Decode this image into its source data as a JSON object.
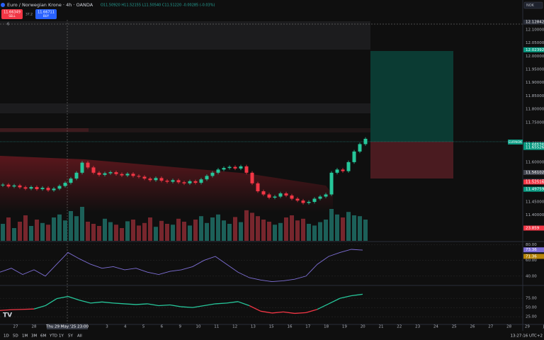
{
  "header": {
    "symbol": "Euro / Norwegian Krone · 4h · OANDA",
    "ohlc": "O11.50920 H11.52155 L11.50540 C11.51220 -0.00285 (-0.03%)",
    "sell_price": "11.66349",
    "sell_label": "SELL",
    "spread": "37.2",
    "buy_price": "11.66711",
    "buy_label": "BUY",
    "currency": "NOK",
    "indicator_count": "6",
    "symbol_tag": "EURNOK"
  },
  "chart_data": [
    {
      "type": "candlestick",
      "open": [
        11.512,
        11.515,
        11.508,
        11.512,
        11.505,
        11.5,
        11.506,
        11.498,
        11.503,
        11.494,
        11.5,
        11.51,
        11.522,
        11.538,
        11.56,
        11.598,
        11.58,
        11.56,
        11.552,
        11.558,
        11.562,
        11.555,
        11.55,
        11.556,
        11.548,
        11.545,
        11.538,
        11.532,
        11.54,
        11.53,
        11.526,
        11.532,
        11.524,
        11.52,
        11.528,
        11.522,
        11.535,
        11.548,
        11.56,
        11.572,
        11.578,
        11.582,
        11.576,
        11.584,
        11.56,
        11.52,
        11.49,
        11.478,
        11.466,
        11.47,
        11.482,
        11.474,
        11.462,
        11.455,
        11.446,
        11.45,
        11.462,
        11.47,
        11.478,
        11.56,
        11.572,
        11.566,
        11.6,
        11.64,
        11.668
      ],
      "high": [
        11.521,
        11.521,
        11.518,
        11.518,
        11.511,
        11.512,
        11.512,
        11.509,
        11.509,
        11.506,
        11.516,
        11.528,
        11.544,
        11.566,
        11.604,
        11.604,
        11.586,
        11.566,
        11.564,
        11.568,
        11.568,
        11.561,
        11.562,
        11.562,
        11.554,
        11.551,
        11.544,
        11.546,
        11.546,
        11.536,
        11.538,
        11.538,
        11.53,
        11.534,
        11.534,
        11.541,
        11.554,
        11.566,
        11.578,
        11.584,
        11.588,
        11.588,
        11.59,
        11.59,
        11.566,
        11.526,
        11.496,
        11.484,
        11.476,
        11.488,
        11.488,
        11.48,
        11.468,
        11.461,
        11.456,
        11.468,
        11.476,
        11.484,
        11.566,
        11.578,
        11.578,
        11.606,
        11.646,
        11.674,
        11.694
      ],
      "low": [
        11.506,
        11.502,
        11.502,
        11.499,
        11.494,
        11.494,
        11.492,
        11.492,
        11.488,
        11.488,
        11.494,
        11.504,
        11.516,
        11.532,
        11.554,
        11.574,
        11.554,
        11.546,
        11.546,
        11.552,
        11.549,
        11.544,
        11.544,
        11.542,
        11.539,
        11.532,
        11.526,
        11.526,
        11.524,
        11.52,
        11.52,
        11.518,
        11.514,
        11.514,
        11.516,
        11.516,
        11.529,
        11.542,
        11.554,
        11.566,
        11.572,
        11.57,
        11.57,
        11.554,
        11.514,
        11.484,
        11.472,
        11.46,
        11.46,
        11.464,
        11.468,
        11.456,
        11.449,
        11.44,
        11.44,
        11.444,
        11.456,
        11.464,
        11.472,
        11.554,
        11.56,
        11.56,
        11.594,
        11.634,
        11.662
      ],
      "close": [
        11.515,
        11.508,
        11.512,
        11.505,
        11.5,
        11.506,
        11.498,
        11.503,
        11.494,
        11.5,
        11.51,
        11.522,
        11.538,
        11.56,
        11.598,
        11.58,
        11.56,
        11.552,
        11.558,
        11.562,
        11.555,
        11.55,
        11.556,
        11.548,
        11.545,
        11.538,
        11.532,
        11.54,
        11.53,
        11.526,
        11.532,
        11.524,
        11.52,
        11.528,
        11.522,
        11.535,
        11.548,
        11.56,
        11.572,
        11.578,
        11.582,
        11.576,
        11.584,
        11.56,
        11.52,
        11.49,
        11.478,
        11.466,
        11.47,
        11.482,
        11.474,
        11.462,
        11.455,
        11.446,
        11.45,
        11.462,
        11.47,
        11.478,
        11.56,
        11.572,
        11.566,
        11.6,
        11.64,
        11.668,
        11.688
      ],
      "up_color": "#26c69a",
      "down_color": "#f23645",
      "ylim": [
        11.303,
        12.137
      ],
      "yticks": [
        {
          "value": 12.1,
          "label": "12.10000"
        },
        {
          "value": 12.05,
          "label": "12.05000"
        },
        {
          "value": 12.0,
          "label": "12.00000"
        },
        {
          "value": 11.95,
          "label": "11.95000"
        },
        {
          "value": 11.9,
          "label": "11.90000"
        },
        {
          "value": 11.85,
          "label": "11.85000"
        },
        {
          "value": 11.8,
          "label": "11.80000"
        },
        {
          "value": 11.75,
          "label": "11.75000"
        },
        {
          "value": 11.6,
          "label": "11.60000"
        },
        {
          "value": 11.5,
          "label": "11.50000"
        },
        {
          "value": 11.45,
          "label": "11.45000"
        },
        {
          "value": 11.4,
          "label": "11.40000"
        },
        {
          "value": 11.35,
          "label": "11.35000"
        }
      ],
      "price_labels": [
        {
          "value": 12.12842,
          "color": "#2a2e39"
        },
        {
          "value": 12.02392,
          "color": "#089981"
        },
        {
          "value": 11.66929,
          "color": "#1e222d"
        },
        {
          "value": 11.66526,
          "color": "#089981"
        },
        {
          "value": 11.65526,
          "color": "#089981"
        },
        {
          "value": 11.56102,
          "color": "#434651"
        },
        {
          "value": 11.52947,
          "color": "#1e222d"
        },
        {
          "value": 11.52516,
          "color": "#f23645"
        },
        {
          "value": 11.49759,
          "color": "#089981"
        }
      ]
    },
    {
      "type": "bar",
      "values": [
        40,
        55,
        30,
        45,
        60,
        35,
        50,
        42,
        38,
        55,
        62,
        48,
        70,
        58,
        80,
        45,
        40,
        35,
        52,
        44,
        38,
        30,
        46,
        50,
        36,
        42,
        55,
        33,
        47,
        40,
        38,
        52,
        45,
        36,
        50,
        58,
        42,
        55,
        62,
        48,
        40,
        56,
        44,
        72,
        66,
        58,
        50,
        45,
        38,
        42,
        55,
        60,
        48,
        52,
        40,
        36,
        44,
        50,
        75,
        62,
        55,
        68,
        60,
        58,
        50
      ],
      "ylim": [
        0,
        100
      ],
      "last_label": 23.859
    },
    {
      "type": "line",
      "values": [
        45,
        50,
        42,
        48,
        40,
        55,
        70,
        62,
        55,
        50,
        52,
        48,
        50,
        45,
        42,
        46,
        48,
        52,
        60,
        65,
        55,
        45,
        38,
        35,
        33,
        34,
        36,
        40,
        55,
        65,
        70,
        74,
        73
      ],
      "color": "#7e6fd6",
      "ylim": [
        29,
        83
      ],
      "yticks": [
        {
          "value": 80,
          "label": "80.00"
        },
        {
          "value": 60,
          "label": "60.00"
        },
        {
          "value": 40,
          "label": "40.00"
        }
      ],
      "last_labels": [
        73.36,
        71.36
      ]
    },
    {
      "type": "line",
      "values": [
        42,
        44,
        45,
        46,
        55,
        74,
        80,
        70,
        62,
        65,
        62,
        60,
        58,
        60,
        55,
        57,
        52,
        50,
        55,
        60,
        62,
        66,
        55,
        40,
        35,
        38,
        34,
        36,
        45,
        60,
        75,
        82,
        86
      ],
      "color": "#26c69a",
      "low_color": "#f23645",
      "ylim": [
        6,
        106
      ],
      "yticks": [
        {
          "value": 75,
          "label": "75.00"
        },
        {
          "value": 50,
          "label": "50.00"
        },
        {
          "value": 25,
          "label": "25.00"
        }
      ]
    }
  ],
  "timeaxis": {
    "before": [
      "27",
      "28"
    ],
    "crosshair": "Thu 29 May '25  23:00",
    "after": [
      "3",
      "4",
      "5",
      "6",
      "9",
      "10",
      "11",
      "12",
      "13",
      "15",
      "16",
      "17",
      "18",
      "19",
      "20",
      "21",
      "22",
      "23",
      "24",
      "25",
      "26",
      "27",
      "28",
      "29",
      "Jul"
    ]
  },
  "toolbar": {
    "ranges": [
      "1D",
      "5D",
      "1M",
      "3M",
      "6M",
      "YTD",
      "1Y",
      "5Y",
      "All"
    ],
    "clock": "13:27:16 UTC+2"
  }
}
